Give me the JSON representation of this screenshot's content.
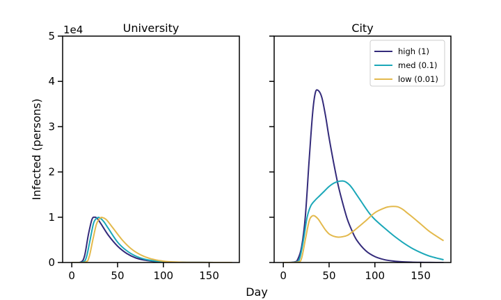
{
  "figure": {
    "xlabel": "Day",
    "ylabel": "Infected (persons)",
    "offset_text": "1e4"
  },
  "chart_data": [
    {
      "type": "line",
      "title": "University",
      "xlim": [
        -10,
        183
      ],
      "ylim": [
        0,
        50000
      ],
      "xticks": [
        0,
        50,
        100,
        150
      ],
      "yticks": [
        0,
        10000,
        20000,
        30000,
        40000,
        50000
      ],
      "ytick_labels": [
        "0",
        "1",
        "2",
        "3",
        "4",
        "5"
      ],
      "grid": false,
      "series": [
        {
          "name": "high (1)",
          "color": "#332a7a",
          "x": [
            0,
            10,
            14,
            18,
            22,
            25,
            28,
            32,
            40,
            50,
            60,
            70,
            80,
            90,
            100,
            120,
            140,
            175
          ],
          "y": [
            0,
            100,
            1500,
            6000,
            9500,
            10000,
            9700,
            8500,
            6000,
            3600,
            2000,
            1000,
            500,
            220,
            100,
            30,
            10,
            0
          ]
        },
        {
          "name": "med (0.1)",
          "color": "#1aa7b8",
          "x": [
            0,
            12,
            16,
            20,
            24,
            28,
            31,
            35,
            40,
            50,
            60,
            70,
            80,
            90,
            100,
            120,
            140,
            175
          ],
          "y": [
            0,
            100,
            1200,
            5000,
            8800,
            9900,
            9800,
            9000,
            7500,
            4500,
            2600,
            1400,
            700,
            350,
            160,
            40,
            10,
            0
          ]
        },
        {
          "name": "low (0.01)",
          "color": "#e3b94c",
          "x": [
            0,
            15,
            19,
            23,
            27,
            31,
            34,
            38,
            45,
            55,
            65,
            75,
            85,
            95,
            105,
            120,
            140,
            175
          ],
          "y": [
            0,
            100,
            1300,
            5000,
            8500,
            9800,
            9900,
            9400,
            7600,
            5000,
            3000,
            1700,
            900,
            450,
            200,
            60,
            15,
            0
          ]
        }
      ]
    },
    {
      "type": "line",
      "title": "City",
      "xlim": [
        -10,
        183
      ],
      "ylim": [
        0,
        50000
      ],
      "xticks": [
        0,
        50,
        100,
        150
      ],
      "yticks": [
        0,
        10000,
        20000,
        30000,
        40000,
        50000
      ],
      "grid": false,
      "legend": "top-right",
      "series": [
        {
          "name": "high (1)",
          "color": "#332a7a",
          "x": [
            0,
            12,
            16,
            20,
            24,
            28,
            32,
            35,
            38,
            42,
            46,
            50,
            55,
            60,
            65,
            70,
            75,
            80,
            90,
            100,
            110,
            120,
            130,
            140,
            150,
            160,
            175
          ],
          "y": [
            0,
            100,
            800,
            3500,
            10000,
            22000,
            33000,
            37500,
            38000,
            36500,
            32500,
            27500,
            22000,
            17000,
            13000,
            9500,
            7000,
            5000,
            2600,
            1300,
            650,
            320,
            150,
            70,
            30,
            15,
            0
          ]
        },
        {
          "name": "med (0.1)",
          "color": "#1aa7b8",
          "x": [
            0,
            14,
            18,
            22,
            26,
            30,
            35,
            40,
            45,
            50,
            55,
            60,
            65,
            68,
            72,
            76,
            80,
            85,
            90,
            95,
            100,
            110,
            120,
            130,
            140,
            150,
            160,
            175
          ],
          "y": [
            0,
            100,
            1000,
            5000,
            10000,
            12500,
            13800,
            14800,
            15800,
            16800,
            17500,
            17900,
            18000,
            17800,
            17200,
            16200,
            15000,
            13500,
            12000,
            10600,
            9500,
            7700,
            6000,
            4500,
            3200,
            2200,
            1400,
            600
          ]
        },
        {
          "name": "low (0.01)",
          "color": "#e3b94c",
          "x": [
            0,
            16,
            20,
            24,
            28,
            31,
            34,
            38,
            42,
            46,
            50,
            55,
            60,
            65,
            70,
            75,
            80,
            90,
            100,
            110,
            115,
            120,
            125,
            130,
            135,
            140,
            150,
            160,
            175
          ],
          "y": [
            0,
            100,
            1000,
            5000,
            9000,
            10200,
            10300,
            9600,
            8400,
            7200,
            6300,
            5800,
            5600,
            5700,
            6000,
            6700,
            7500,
            9200,
            11000,
            12000,
            12300,
            12400,
            12300,
            11800,
            11000,
            10200,
            8500,
            6800,
            4800
          ]
        }
      ]
    }
  ]
}
